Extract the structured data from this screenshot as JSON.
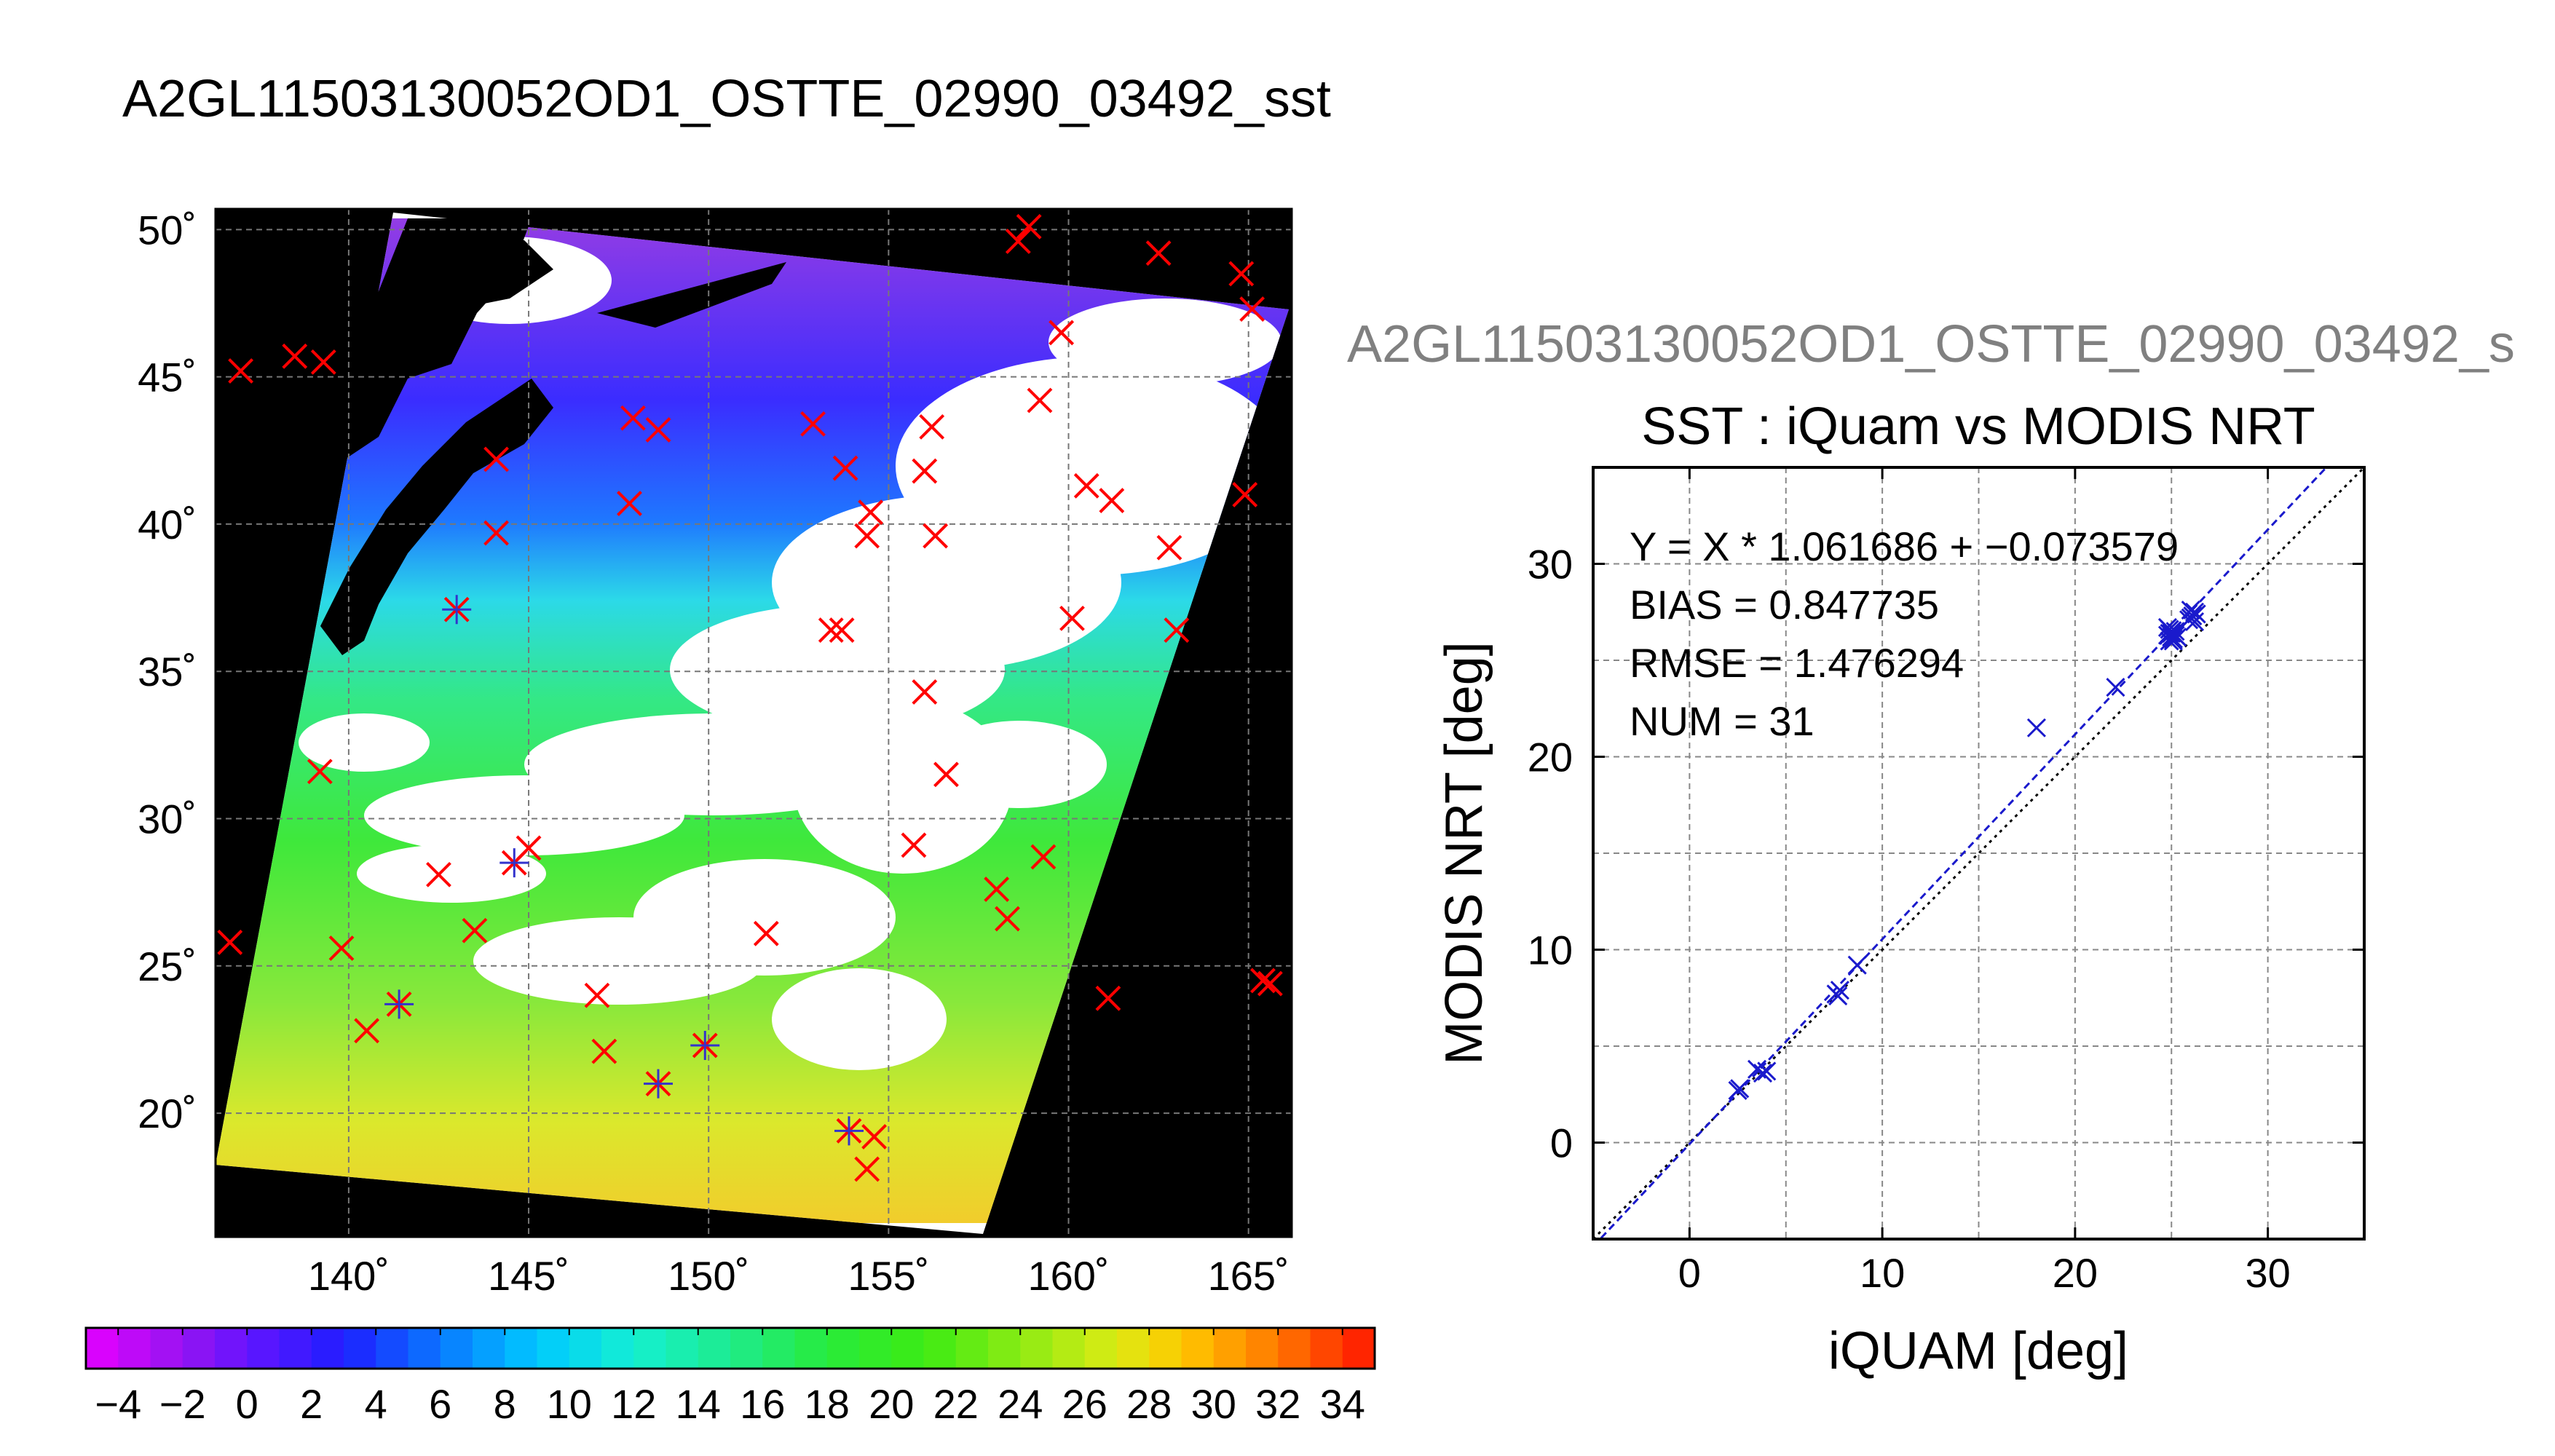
{
  "main_title": "A2GL11503130052OD1_OSTTE_02990_03492_sst",
  "map": {
    "lat_ticks": [
      50,
      45,
      40,
      35,
      30,
      25,
      20
    ],
    "lon_ticks": [
      140,
      145,
      150,
      155,
      160,
      165
    ],
    "lat_range": [
      15.8,
      50.7
    ],
    "lon_range": [
      136.3,
      166.2
    ],
    "lat_tick_labels": [
      "50˚",
      "45˚",
      "40˚",
      "35˚",
      "30˚",
      "25˚",
      "20˚"
    ],
    "lon_tick_labels": [
      "140˚",
      "145˚",
      "150˚",
      "155˚",
      "160˚",
      "165˚"
    ],
    "marker_color": "#ff0000",
    "match_color": "#3333cc",
    "markers": [
      {
        "lon": 137.0,
        "lat": 45.2,
        "match": false
      },
      {
        "lon": 138.5,
        "lat": 45.7,
        "match": false
      },
      {
        "lon": 139.3,
        "lat": 45.5,
        "match": false
      },
      {
        "lon": 158.6,
        "lat": 49.6,
        "match": false
      },
      {
        "lon": 158.9,
        "lat": 50.1,
        "match": false
      },
      {
        "lon": 162.5,
        "lat": 49.2,
        "match": false
      },
      {
        "lon": 164.8,
        "lat": 48.5,
        "match": false
      },
      {
        "lon": 165.1,
        "lat": 47.3,
        "match": false
      },
      {
        "lon": 159.8,
        "lat": 46.5,
        "match": false
      },
      {
        "lon": 159.2,
        "lat": 44.2,
        "match": false
      },
      {
        "lon": 144.1,
        "lat": 42.2,
        "match": false
      },
      {
        "lon": 147.9,
        "lat": 43.6,
        "match": false
      },
      {
        "lon": 148.6,
        "lat": 43.2,
        "match": false
      },
      {
        "lon": 152.9,
        "lat": 43.4,
        "match": false
      },
      {
        "lon": 156.2,
        "lat": 43.3,
        "match": false
      },
      {
        "lon": 156.0,
        "lat": 41.8,
        "match": false
      },
      {
        "lon": 153.8,
        "lat": 41.9,
        "match": false
      },
      {
        "lon": 160.5,
        "lat": 41.3,
        "match": false
      },
      {
        "lon": 161.2,
        "lat": 40.8,
        "match": false
      },
      {
        "lon": 164.9,
        "lat": 41.0,
        "match": false
      },
      {
        "lon": 147.8,
        "lat": 40.7,
        "match": false
      },
      {
        "lon": 144.1,
        "lat": 39.7,
        "match": false
      },
      {
        "lon": 154.5,
        "lat": 40.4,
        "match": false
      },
      {
        "lon": 154.4,
        "lat": 39.6,
        "match": false
      },
      {
        "lon": 156.3,
        "lat": 39.6,
        "match": false
      },
      {
        "lon": 162.8,
        "lat": 39.2,
        "match": false
      },
      {
        "lon": 143.0,
        "lat": 37.1,
        "match": true
      },
      {
        "lon": 153.4,
        "lat": 36.4,
        "match": false
      },
      {
        "lon": 153.7,
        "lat": 36.4,
        "match": false
      },
      {
        "lon": 160.1,
        "lat": 36.8,
        "match": false
      },
      {
        "lon": 163.0,
        "lat": 36.4,
        "match": false
      },
      {
        "lon": 156.0,
        "lat": 34.3,
        "match": false
      },
      {
        "lon": 139.2,
        "lat": 31.6,
        "match": false
      },
      {
        "lon": 156.6,
        "lat": 31.5,
        "match": false
      },
      {
        "lon": 145.0,
        "lat": 29.0,
        "match": false
      },
      {
        "lon": 144.6,
        "lat": 28.5,
        "match": true
      },
      {
        "lon": 142.5,
        "lat": 28.1,
        "match": false
      },
      {
        "lon": 155.7,
        "lat": 29.1,
        "match": false
      },
      {
        "lon": 159.3,
        "lat": 28.7,
        "match": false
      },
      {
        "lon": 158.0,
        "lat": 27.6,
        "match": false
      },
      {
        "lon": 158.3,
        "lat": 26.6,
        "match": false
      },
      {
        "lon": 136.7,
        "lat": 25.8,
        "match": false
      },
      {
        "lon": 139.8,
        "lat": 25.6,
        "match": false
      },
      {
        "lon": 143.5,
        "lat": 26.2,
        "match": false
      },
      {
        "lon": 151.6,
        "lat": 26.1,
        "match": false
      },
      {
        "lon": 141.4,
        "lat": 23.7,
        "match": true
      },
      {
        "lon": 140.5,
        "lat": 22.8,
        "match": false
      },
      {
        "lon": 146.9,
        "lat": 24.0,
        "match": false
      },
      {
        "lon": 161.1,
        "lat": 23.9,
        "match": false
      },
      {
        "lon": 165.6,
        "lat": 24.4,
        "match": false
      },
      {
        "lon": 165.4,
        "lat": 24.5,
        "match": false
      },
      {
        "lon": 147.1,
        "lat": 22.1,
        "match": false
      },
      {
        "lon": 149.9,
        "lat": 22.3,
        "match": true
      },
      {
        "lon": 148.6,
        "lat": 21.0,
        "match": true
      },
      {
        "lon": 153.9,
        "lat": 19.4,
        "match": true
      },
      {
        "lon": 154.6,
        "lat": 19.2,
        "match": false
      },
      {
        "lon": 154.4,
        "lat": 18.1,
        "match": false
      }
    ]
  },
  "colorbar": {
    "range": [
      -5,
      35
    ],
    "tick_values": [
      -4,
      -2,
      0,
      2,
      4,
      6,
      8,
      10,
      12,
      14,
      16,
      18,
      20,
      22,
      24,
      26,
      28,
      30,
      32,
      34
    ],
    "tick_labels": [
      "−4",
      "−2",
      "0",
      "2",
      "4",
      "6",
      "8",
      "10",
      "12",
      "14",
      "16",
      "18",
      "20",
      "22",
      "24",
      "26",
      "28",
      "30",
      "32",
      "34"
    ]
  },
  "scatter_header": "A2GL11503130052OD1_OSTTE_02990_03492_s",
  "chart_data": {
    "type": "scatter",
    "title": "SST : iQuam vs MODIS NRT",
    "xlabel": "iQUAM [deg]",
    "ylabel": "MODIS NRT [deg]",
    "xlim": [
      -5,
      35
    ],
    "ylim": [
      -5,
      35
    ],
    "xticks": [
      0,
      10,
      20,
      30
    ],
    "yticks": [
      0,
      10,
      20,
      30
    ],
    "xtick_labels": [
      "0",
      "10",
      "20",
      "30"
    ],
    "ytick_labels": [
      "0",
      "10",
      "20",
      "30"
    ],
    "grid": true,
    "stats": [
      "Y = X * 1.061686 + −0.073579",
      "BIAS = 0.847735",
      "RMSE = 1.476294",
      "NUM = 31"
    ],
    "fit": {
      "slope": 1.061686,
      "intercept": -0.073579
    },
    "identity_line": true,
    "point_color": "#1a1acc",
    "points": [
      [
        2.5,
        2.7
      ],
      [
        2.6,
        2.8
      ],
      [
        3.5,
        3.8
      ],
      [
        3.8,
        3.6
      ],
      [
        4.0,
        3.7
      ],
      [
        7.6,
        7.7
      ],
      [
        7.8,
        7.9
      ],
      [
        7.7,
        7.6
      ],
      [
        8.7,
        9.2
      ],
      [
        18.0,
        21.5
      ],
      [
        22.1,
        23.6
      ],
      [
        24.8,
        26.3
      ],
      [
        24.9,
        26.6
      ],
      [
        25.0,
        26.4
      ],
      [
        25.1,
        26.1
      ],
      [
        24.9,
        26.0
      ],
      [
        25.0,
        26.5
      ],
      [
        25.2,
        26.3
      ],
      [
        24.8,
        26.7
      ],
      [
        25.1,
        26.0
      ],
      [
        25.3,
        26.2
      ],
      [
        24.9,
        26.4
      ],
      [
        25.0,
        26.2
      ],
      [
        25.2,
        26.5
      ],
      [
        26.0,
        27.2
      ],
      [
        26.2,
        27.5
      ],
      [
        26.1,
        27.3
      ],
      [
        26.3,
        27.4
      ],
      [
        25.9,
        27.1
      ],
      [
        26.2,
        27.0
      ],
      [
        26.0,
        27.6
      ]
    ]
  }
}
